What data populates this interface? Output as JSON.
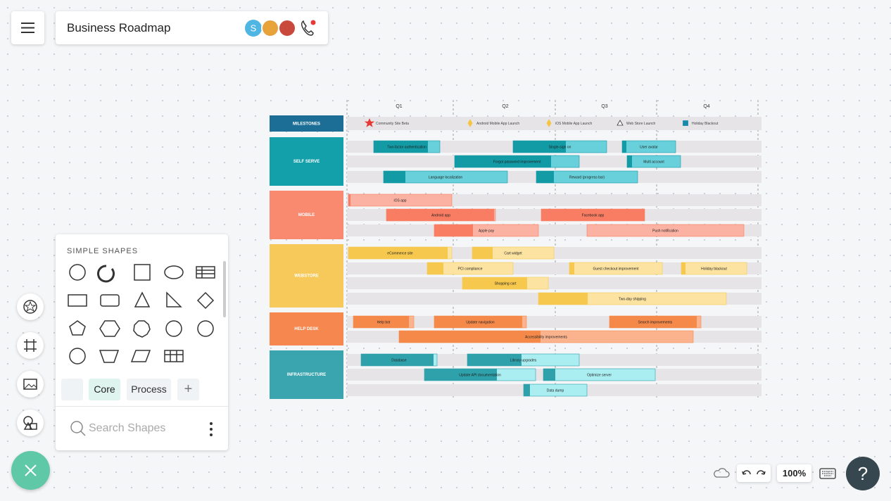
{
  "header": {
    "title": "Business Roadmap",
    "avatar_initial": "S"
  },
  "shapes_panel": {
    "heading": "SIMPLE SHAPES",
    "tabs": [
      "Core",
      "Process"
    ],
    "search_placeholder": "Search Shapes"
  },
  "zoom": "100%",
  "help": "?",
  "roadmap": {
    "quarters": [
      "Q1",
      "Q2",
      "Q3",
      "Q4"
    ],
    "milestones_label": "MILESTONES",
    "milestones": [
      "Community Site Beta",
      "Android Mobile App Launch",
      "iOS Mobile App Launch",
      "Web Store Launch",
      "Holiday Blackout"
    ],
    "lanes": [
      {
        "label": "SELF SERVE",
        "tasks": [
          "Two-factor authentication",
          "Single-sign on",
          "User avatar",
          "Forgot password improvement",
          "Multi account",
          "Language localization",
          "Reward (progress bar)"
        ]
      },
      {
        "label": "MOBILE",
        "tasks": [
          "iOS app",
          "Android app",
          "Facebook app",
          "Apple pay",
          "Push notification"
        ]
      },
      {
        "label": "WEBSTORE",
        "tasks": [
          "eCommerce site",
          "Cart widget",
          "PCI compliance",
          "Guest checkout improvement",
          "Holiday blackout",
          "Shopping cart",
          "Two-day shipping"
        ]
      },
      {
        "label": "HELP DESK",
        "tasks": [
          "Help bot",
          "Update navigation",
          "Search improvements",
          "Accessibility improvements"
        ]
      },
      {
        "label": "INFRASTRUCTURE",
        "tasks": [
          "Database",
          "Library upgrades",
          "Update API documentation",
          "Optimize server",
          "Data dump"
        ]
      }
    ]
  }
}
